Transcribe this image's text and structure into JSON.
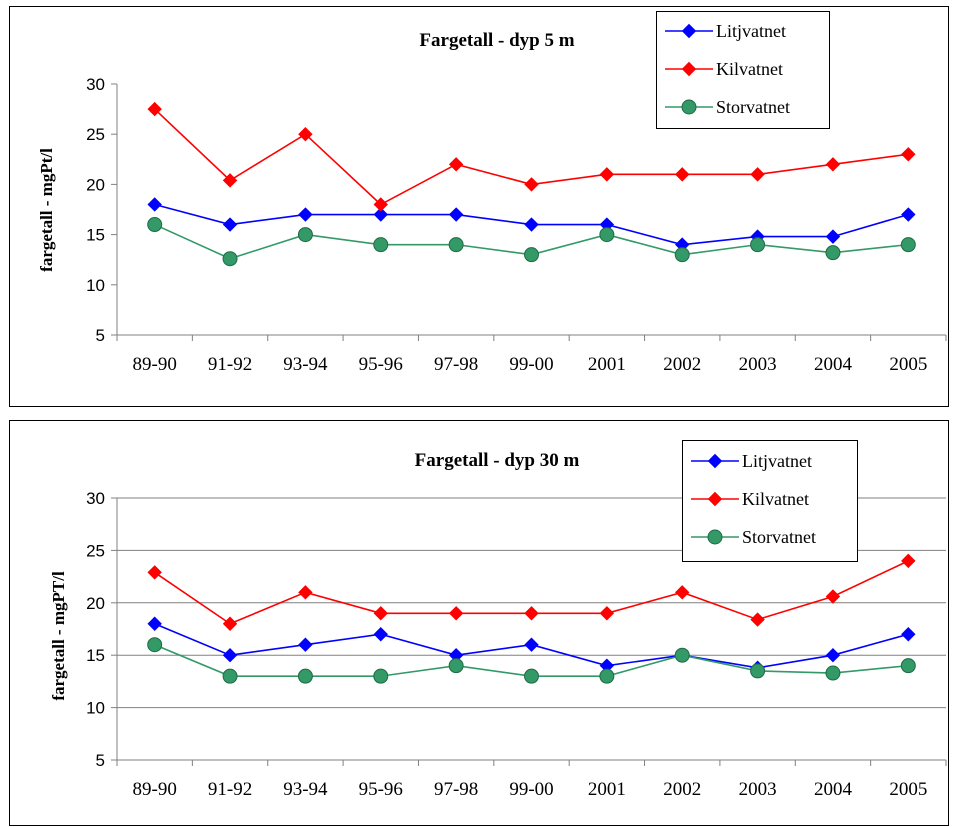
{
  "chart_data": [
    {
      "type": "line",
      "title": "Fargetall - dyp 5 m",
      "xlabel": "",
      "ylabel": "fargetall - mgPt/l",
      "categories": [
        "89-90",
        "91-92",
        "93-94",
        "95-96",
        "97-98",
        "99-00",
        "2001",
        "2002",
        "2003",
        "2004",
        "2005"
      ],
      "ylim": [
        5,
        30
      ],
      "yticks": [
        5,
        10,
        15,
        20,
        25,
        30
      ],
      "grid": false,
      "legend_position": "top-right",
      "series": [
        {
          "name": "Litjvatnet",
          "color": "#0000ff",
          "marker": "diamond",
          "values": [
            18,
            16,
            17,
            17,
            17,
            16,
            16,
            14,
            14.8,
            14.8,
            17
          ]
        },
        {
          "name": "Kilvatnet",
          "color": "#ff0000",
          "marker": "diamond",
          "values": [
            27.5,
            20.4,
            25,
            18,
            22,
            20,
            21,
            21,
            21,
            22,
            23
          ]
        },
        {
          "name": "Storvatnet",
          "color": "#339966",
          "marker": "circle",
          "values": [
            16,
            12.6,
            15,
            14,
            14,
            13,
            15,
            13,
            14,
            13.2,
            14
          ]
        }
      ]
    },
    {
      "type": "line",
      "title": "Fargetall - dyp 30 m",
      "xlabel": "",
      "ylabel": "fargetall - mgPT/l",
      "categories": [
        "89-90",
        "91-92",
        "93-94",
        "95-96",
        "97-98",
        "99-00",
        "2001",
        "2002",
        "2003",
        "2004",
        "2005"
      ],
      "ylim": [
        5,
        30
      ],
      "yticks": [
        5,
        10,
        15,
        20,
        25,
        30
      ],
      "grid": true,
      "legend_position": "top-right",
      "series": [
        {
          "name": "Litjvatnet",
          "color": "#0000ff",
          "marker": "diamond",
          "values": [
            18,
            15,
            16,
            17,
            15,
            16,
            14,
            15,
            13.8,
            15,
            17
          ]
        },
        {
          "name": "Kilvatnet",
          "color": "#ff0000",
          "marker": "diamond",
          "values": [
            22.9,
            18,
            21,
            19,
            19,
            19,
            19,
            21,
            18.4,
            20.6,
            24
          ]
        },
        {
          "name": "Storvatnet",
          "color": "#339966",
          "marker": "circle",
          "values": [
            16,
            13,
            13,
            13,
            14,
            13,
            13,
            15,
            13.5,
            13.3,
            14
          ]
        }
      ]
    }
  ]
}
